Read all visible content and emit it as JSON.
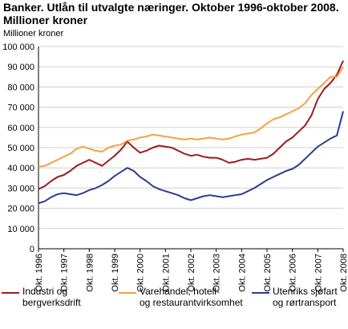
{
  "header": {
    "title_line1": "Banker. Utlån til utvalgte næringer. Oktober 1996-oktober 2008.",
    "title_line2": "Millioner kroner"
  },
  "chart_data": {
    "type": "line",
    "title": "Banker. Utlån til utvalgte næringer. Oktober 1996-oktober 2008. Millioner kroner",
    "ylabel": "Millioner kroner",
    "xlabel": "",
    "ylim": [
      0,
      100000
    ],
    "yticks": [
      0,
      10000,
      20000,
      30000,
      40000,
      50000,
      60000,
      70000,
      80000,
      90000,
      100000
    ],
    "ytick_labels": [
      "0",
      "10 000",
      "20 000",
      "30 000",
      "40 000",
      "50 000",
      "60 000",
      "70 000",
      "80 000",
      "90 000",
      "100 000"
    ],
    "x": [
      "Okt. 1996",
      "Okt. 1997",
      "Okt. 1998",
      "Okt. 1999",
      "Okt. 2000",
      "Okt. 2001",
      "Okt. 2002",
      "Okt. 2003",
      "Okt. 2004",
      "Okt. 2005",
      "Okt. 2006",
      "Okt. 2007",
      "Okt. 2008"
    ],
    "grid": true,
    "legend_position": "bottom",
    "series": [
      {
        "name": "Industri og bergverksdrift",
        "color": "#9b1c1f",
        "points": [
          [
            "1996-10",
            29500
          ],
          [
            "1997-01",
            31000
          ],
          [
            "1997-04",
            33500
          ],
          [
            "1997-07",
            35500
          ],
          [
            "1997-10",
            36500
          ],
          [
            "1998-01",
            38500
          ],
          [
            "1998-04",
            41000
          ],
          [
            "1998-07",
            42500
          ],
          [
            "1998-10",
            44000
          ],
          [
            "1999-01",
            42500
          ],
          [
            "1999-04",
            41000
          ],
          [
            "1999-07",
            43500
          ],
          [
            "1999-10",
            46000
          ],
          [
            "2000-01",
            49000
          ],
          [
            "2000-04",
            53000
          ],
          [
            "2000-07",
            50000
          ],
          [
            "2000-10",
            47500
          ],
          [
            "2001-01",
            48500
          ],
          [
            "2001-04",
            50000
          ],
          [
            "2001-07",
            51000
          ],
          [
            "2001-10",
            50500
          ],
          [
            "2002-01",
            50000
          ],
          [
            "2002-04",
            48500
          ],
          [
            "2002-07",
            47000
          ],
          [
            "2002-10",
            46000
          ],
          [
            "2003-01",
            46500
          ],
          [
            "2003-04",
            45500
          ],
          [
            "2003-07",
            45000
          ],
          [
            "2003-10",
            45000
          ],
          [
            "2004-01",
            44000
          ],
          [
            "2004-04",
            42500
          ],
          [
            "2004-07",
            43000
          ],
          [
            "2004-10",
            44000
          ],
          [
            "2005-01",
            44500
          ],
          [
            "2005-04",
            44000
          ],
          [
            "2005-07",
            44500
          ],
          [
            "2005-10",
            45000
          ],
          [
            "2006-01",
            47000
          ],
          [
            "2006-04",
            50000
          ],
          [
            "2006-07",
            53000
          ],
          [
            "2006-10",
            55000
          ],
          [
            "2007-01",
            58000
          ],
          [
            "2007-04",
            61000
          ],
          [
            "2007-07",
            66000
          ],
          [
            "2007-10",
            74000
          ],
          [
            "2008-01",
            79000
          ],
          [
            "2008-04",
            82000
          ],
          [
            "2008-07",
            86000
          ],
          [
            "2008-10",
            93000
          ]
        ]
      },
      {
        "name": "Varehandel, hotell- og restaurantvirksomhet",
        "color": "#f5a142",
        "points": [
          [
            "1996-10",
            40500
          ],
          [
            "1997-01",
            41000
          ],
          [
            "1997-04",
            42500
          ],
          [
            "1997-07",
            44000
          ],
          [
            "1997-10",
            45500
          ],
          [
            "1998-01",
            47000
          ],
          [
            "1998-04",
            49500
          ],
          [
            "1998-07",
            50500
          ],
          [
            "1998-10",
            49500
          ],
          [
            "1999-01",
            48500
          ],
          [
            "1999-04",
            48000
          ],
          [
            "1999-07",
            50000
          ],
          [
            "1999-10",
            51000
          ],
          [
            "2000-01",
            51500
          ],
          [
            "2000-04",
            53500
          ],
          [
            "2000-07",
            54000
          ],
          [
            "2000-10",
            55000
          ],
          [
            "2001-01",
            55500
          ],
          [
            "2001-04",
            56500
          ],
          [
            "2001-07",
            56000
          ],
          [
            "2001-10",
            55500
          ],
          [
            "2002-01",
            55000
          ],
          [
            "2002-04",
            54500
          ],
          [
            "2002-07",
            54000
          ],
          [
            "2002-10",
            54500
          ],
          [
            "2003-01",
            54000
          ],
          [
            "2003-04",
            54500
          ],
          [
            "2003-07",
            55000
          ],
          [
            "2003-10",
            54500
          ],
          [
            "2004-01",
            54000
          ],
          [
            "2004-04",
            54500
          ],
          [
            "2004-07",
            55500
          ],
          [
            "2004-10",
            56500
          ],
          [
            "2005-01",
            57000
          ],
          [
            "2005-04",
            57500
          ],
          [
            "2005-07",
            59500
          ],
          [
            "2005-10",
            62000
          ],
          [
            "2006-01",
            64000
          ],
          [
            "2006-04",
            65000
          ],
          [
            "2006-07",
            66500
          ],
          [
            "2006-10",
            68000
          ],
          [
            "2007-01",
            69500
          ],
          [
            "2007-04",
            72000
          ],
          [
            "2007-07",
            76000
          ],
          [
            "2007-10",
            79000
          ],
          [
            "2008-01",
            82000
          ],
          [
            "2008-04",
            85000
          ],
          [
            "2008-07",
            85000
          ],
          [
            "2008-10",
            90000
          ]
        ]
      },
      {
        "name": "Utenriks sjøfart og rørtransport",
        "color": "#2a3e8f",
        "points": [
          [
            "1996-10",
            22500
          ],
          [
            "1997-01",
            23500
          ],
          [
            "1997-04",
            25500
          ],
          [
            "1997-07",
            27000
          ],
          [
            "1997-10",
            27500
          ],
          [
            "1998-01",
            27000
          ],
          [
            "1998-04",
            26500
          ],
          [
            "1998-07",
            27500
          ],
          [
            "1998-10",
            29000
          ],
          [
            "1999-01",
            30000
          ],
          [
            "1999-04",
            31500
          ],
          [
            "1999-07",
            33500
          ],
          [
            "1999-10",
            36000
          ],
          [
            "2000-01",
            38000
          ],
          [
            "2000-04",
            40000
          ],
          [
            "2000-07",
            38500
          ],
          [
            "2000-10",
            35500
          ],
          [
            "2001-01",
            33500
          ],
          [
            "2001-04",
            31000
          ],
          [
            "2001-07",
            29500
          ],
          [
            "2001-10",
            28500
          ],
          [
            "2002-01",
            27500
          ],
          [
            "2002-04",
            26500
          ],
          [
            "2002-07",
            25000
          ],
          [
            "2002-10",
            24000
          ],
          [
            "2003-01",
            25000
          ],
          [
            "2003-04",
            26000
          ],
          [
            "2003-07",
            26500
          ],
          [
            "2003-10",
            26000
          ],
          [
            "2004-01",
            25500
          ],
          [
            "2004-04",
            26000
          ],
          [
            "2004-07",
            26500
          ],
          [
            "2004-10",
            27000
          ],
          [
            "2005-01",
            28500
          ],
          [
            "2005-04",
            30000
          ],
          [
            "2005-07",
            32000
          ],
          [
            "2005-10",
            34000
          ],
          [
            "2006-01",
            35500
          ],
          [
            "2006-04",
            37000
          ],
          [
            "2006-07",
            38500
          ],
          [
            "2006-10",
            39500
          ],
          [
            "2007-01",
            41500
          ],
          [
            "2007-04",
            44500
          ],
          [
            "2007-07",
            47500
          ],
          [
            "2007-10",
            50500
          ],
          [
            "2008-01",
            52500
          ],
          [
            "2008-04",
            54500
          ],
          [
            "2008-07",
            56000
          ],
          [
            "2008-10",
            68000
          ]
        ]
      }
    ]
  },
  "legend": [
    {
      "line1": "Industri og",
      "line2": "bergverksdrift",
      "color": "#9b1c1f"
    },
    {
      "line1": "Varehandel, hotell-",
      "line2": "og restaurantvirksomhet",
      "color": "#f5a142"
    },
    {
      "line1": "Utenriks sjøfart",
      "line2": "og rørtransport",
      "color": "#2a3e8f"
    }
  ]
}
